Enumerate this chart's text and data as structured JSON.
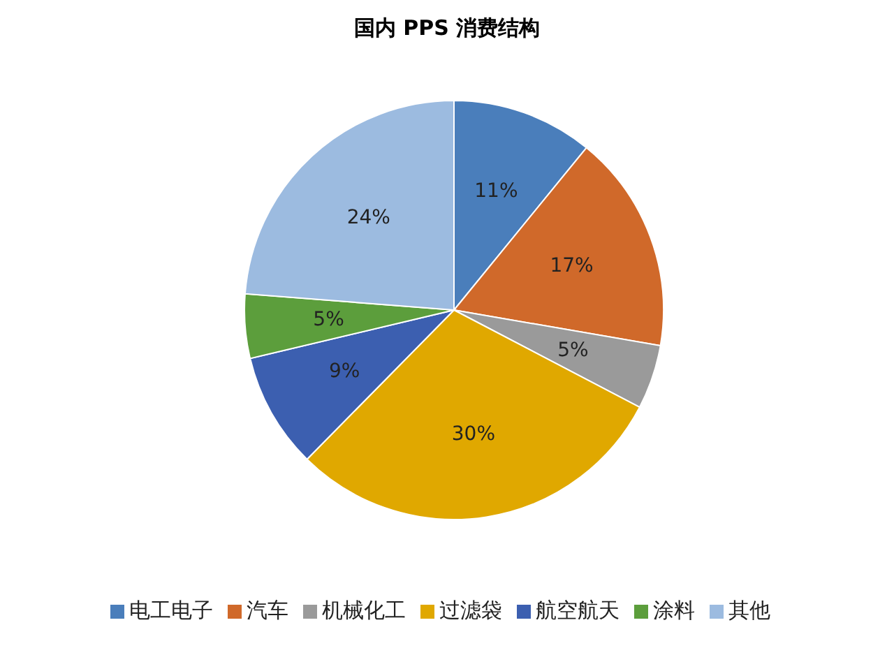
{
  "chart_data": {
    "type": "pie",
    "title": "国内 PPS 消费结构",
    "categories": [
      "电工电子",
      "汽车",
      "机械化工",
      "过滤袋",
      "航空航天",
      "涂料",
      "其他"
    ],
    "values": [
      11,
      17,
      5,
      30,
      9,
      5,
      24
    ],
    "value_labels": [
      "11%",
      "17%",
      "5%",
      "30%",
      "9%",
      "5%",
      "24%"
    ],
    "colors": [
      "#4a7ebb",
      "#d0692a",
      "#9a9a9a",
      "#e0a800",
      "#3c5fb0",
      "#5c9e3c",
      "#9cbbe0"
    ],
    "legend": "bottom"
  }
}
